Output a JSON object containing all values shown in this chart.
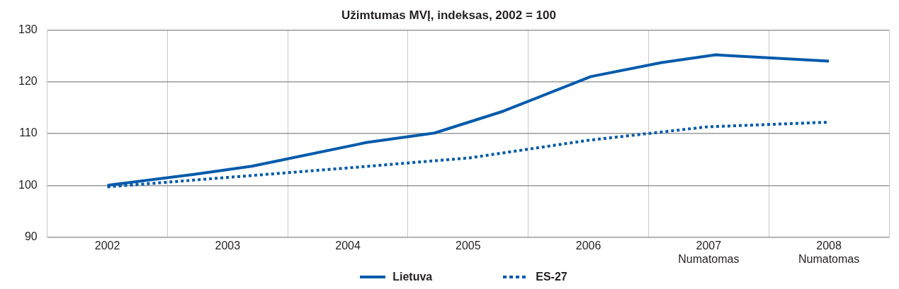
{
  "chart_data": {
    "type": "line",
    "title": "Užimtumas MVĮ, indeksas, 2002 = 100",
    "xlim": [
      2001.5,
      2008.5
    ],
    "xticks": [
      2002,
      2003,
      2004,
      2005,
      2006,
      {
        "value": 2007,
        "label": "2007\nNumatomas"
      },
      {
        "value": 2008,
        "label": "2008\nNumatomas"
      }
    ],
    "ylim": [
      90,
      130
    ],
    "yticks": [
      90,
      100,
      110,
      120,
      130
    ],
    "series": [
      {
        "name": "Lietuva",
        "color": "#005aab",
        "line_style": "solid",
        "x": [
          2002,
          2002.71,
          2003.2,
          2004.16,
          2004.72,
          2005.29,
          2006.02,
          2006.61,
          2007.06,
          2008
        ],
        "values": [
          100,
          102.1,
          103.7,
          108.3,
          110.1,
          114.3,
          121,
          123.7,
          125.2,
          124
        ]
      },
      {
        "name": "ES-27",
        "color": "#005aab",
        "line_style": "dotted",
        "x": [
          2002,
          2003.04,
          2004.02,
          2005.01,
          2006,
          2006.99,
          2008
        ],
        "values": [
          99.7,
          101.6,
          103.4,
          105.3,
          108.7,
          111.3,
          112.2
        ]
      }
    ],
    "marker": "none",
    "grid": true,
    "legend": "bottom"
  }
}
